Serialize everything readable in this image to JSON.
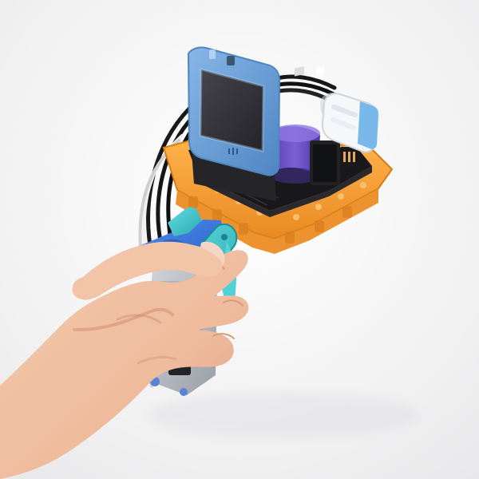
{
  "image": {
    "subject": "handheld-lego-electronics-device",
    "colors": {
      "background": "#f4f4f5",
      "skin": "#f0c2a5",
      "skin_shadow": "#d89b7e",
      "orange_frame": "#f7a43a",
      "orange_frame_dark": "#d9801b",
      "blue_bezel": "#6ea2d9",
      "blue_bezel_dark": "#4d84bf",
      "screen": "#2d2c31",
      "pcb_black": "#1d1d20",
      "purple_battery": "#6a4fbe",
      "technic_blue": "#3f7de0",
      "technic_cyan": "#3fc0c8",
      "gray_brick": "#b8bcc2",
      "cable_black": "#111111",
      "cable_white": "#e9e9e9",
      "sensor_white": "#f3f5f8",
      "sensor_blue": "#77b7e7"
    },
    "icons": [
      "handheld-device-icon",
      "display-module-icon",
      "battery-icon",
      "sensor-module-icon",
      "cable-icon",
      "hand-icon"
    ]
  }
}
